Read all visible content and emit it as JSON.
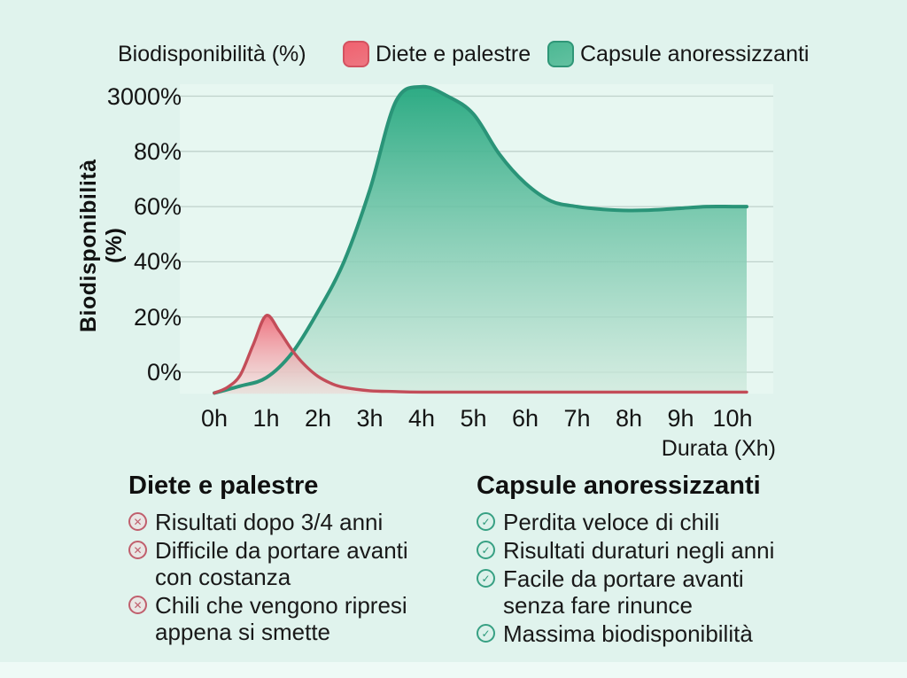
{
  "header": {
    "title": "Biodisponibilità (%)",
    "legend": [
      {
        "label": "Diete e palestre",
        "swatch_color": "#f0616f",
        "swatch_border": "#d35260"
      },
      {
        "label": "Capsule anoressizzanti",
        "swatch_color": "#4cb893",
        "swatch_border": "#2f9677"
      }
    ]
  },
  "colors": {
    "background": "#e0f3ed",
    "plot_background": "#ecfaf4",
    "grid": "#bfd2cb",
    "text": "#161616",
    "red_accent": "#c34d59",
    "green_accent": "#2a9478",
    "bottom_strip": "#eefaf6"
  },
  "chart_data": {
    "type": "area",
    "title": "Biodisponibilità (%)",
    "xlabel": "Durata (Xh)",
    "ylabel": "Biodisponibilità (%)",
    "x_ticks": [
      "0h",
      "1h",
      "2h",
      "3h",
      "4h",
      "5h",
      "6h",
      "7h",
      "8h",
      "9h",
      "10h"
    ],
    "y_ticks": [
      "0%",
      "20%",
      "40%",
      "60%",
      "80%",
      "3000%"
    ],
    "y_axis_note": "ticks equally spaced; values below are linear axis positions where 20% = one gridline step and the top gridline (labelled 3000%) = 100; curves start slightly below the 0% gridline",
    "grid": true,
    "legend_position": "top",
    "key_readings": {
      "red_peak": {
        "x": "1h",
        "y": "20%"
      },
      "green_peak": {
        "x": "4h",
        "y": "just above the 3000% gridline"
      },
      "green_plateau": {
        "from": "7h",
        "to": "10h",
        "y": "60%"
      }
    },
    "series": [
      {
        "name": "Capsule anoressizzanti",
        "stroke": "#2a9478",
        "fill_top": "#23a77e",
        "fill_bottom": "#cfe9dc",
        "points": [
          [
            0,
            -7.5
          ],
          [
            0.5,
            -5
          ],
          [
            1,
            -2
          ],
          [
            1.5,
            7
          ],
          [
            2,
            22
          ],
          [
            2.5,
            40
          ],
          [
            3,
            66
          ],
          [
            3.5,
            98
          ],
          [
            4,
            103.4
          ],
          [
            4.5,
            100
          ],
          [
            5,
            93.5
          ],
          [
            5.5,
            79
          ],
          [
            6,
            68.5
          ],
          [
            6.5,
            62
          ],
          [
            7,
            60
          ],
          [
            7.5,
            59
          ],
          [
            8,
            58.6
          ],
          [
            8.5,
            58.8
          ],
          [
            9,
            59.4
          ],
          [
            9.5,
            60
          ],
          [
            10,
            60
          ]
        ]
      },
      {
        "name": "Diete e palestre",
        "stroke": "#c34d59",
        "fill_top": "#ee6170",
        "fill_bottom": "#f8d9d9",
        "points": [
          [
            0,
            -7.5
          ],
          [
            0.25,
            -5.5
          ],
          [
            0.5,
            -1
          ],
          [
            0.75,
            10
          ],
          [
            1,
            20.5
          ],
          [
            1.25,
            15
          ],
          [
            1.5,
            8
          ],
          [
            1.75,
            2.5
          ],
          [
            2,
            -1.5
          ],
          [
            2.25,
            -4
          ],
          [
            2.5,
            -5.5
          ],
          [
            3,
            -6.7
          ],
          [
            3.5,
            -7
          ],
          [
            4,
            -7.2
          ],
          [
            5,
            -7.2
          ],
          [
            6,
            -7.2
          ],
          [
            7,
            -7.2
          ],
          [
            8,
            -7.2
          ],
          [
            9,
            -7.2
          ],
          [
            10,
            -7.2
          ]
        ]
      }
    ]
  },
  "sections": [
    {
      "heading": "Diete e palestre",
      "icon": "cross-circle",
      "icon_color": "#c05f6d",
      "items": [
        [
          "Risultati dopo 3/4 anni"
        ],
        [
          "Difficile da portare avanti",
          "con costanza"
        ],
        [
          "Chili che vengono ripresi",
          "appena si smette"
        ]
      ]
    },
    {
      "heading": "Capsule anoressizzanti",
      "icon": "check-circle",
      "icon_color": "#37a083",
      "items": [
        [
          "Perdita veloce di chili"
        ],
        [
          "Risultati duraturi negli anni"
        ],
        [
          "Facile da portare avanti",
          "senza fare rinunce"
        ],
        [
          "Massima biodisponibilità"
        ]
      ]
    }
  ]
}
